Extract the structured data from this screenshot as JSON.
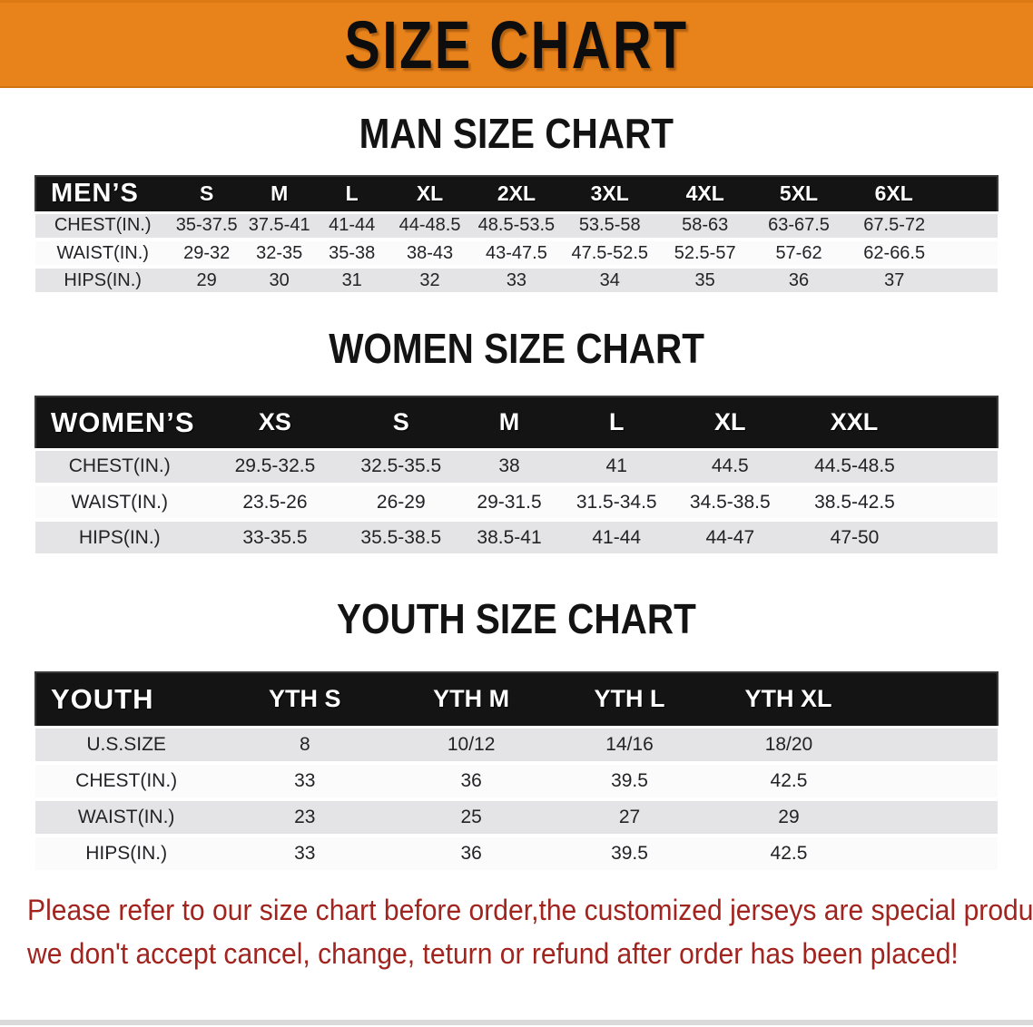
{
  "banner": {
    "title": "SIZE CHART"
  },
  "colors": {
    "banner_bg": "#e8821b",
    "header_bar": "#141414",
    "row_alt_gray": "#e4e4e6",
    "disclaimer_red": "#a1241f"
  },
  "sections": {
    "men": {
      "heading": "MAN SIZE CHART",
      "table": {
        "label": "MEN’S",
        "columns": [
          "S",
          "M",
          "L",
          "XL",
          "2XL",
          "3XL",
          "4XL",
          "5XL",
          "6XL"
        ],
        "rows": [
          {
            "label": "CHEST(IN.)",
            "values": [
              "35-37.5",
              "37.5-41",
              "41-44",
              "44-48.5",
              "48.5-53.5",
              "53.5-58",
              "58-63",
              "63-67.5",
              "67.5-72"
            ]
          },
          {
            "label": "WAIST(IN.)",
            "values": [
              "29-32",
              "32-35",
              "35-38",
              "38-43",
              "43-47.5",
              "47.5-52.5",
              "52.5-57",
              "57-62",
              "62-66.5"
            ]
          },
          {
            "label": "HIPS(IN.)",
            "values": [
              "29",
              "30",
              "31",
              "32",
              "33",
              "34",
              "35",
              "36",
              "37"
            ]
          }
        ]
      }
    },
    "women": {
      "heading": "WOMEN SIZE CHART",
      "table": {
        "label": "WOMEN’S",
        "columns": [
          "XS",
          "S",
          "M",
          "L",
          "XL",
          "XXL"
        ],
        "rows": [
          {
            "label": "CHEST(IN.)",
            "values": [
              "29.5-32.5",
              "32.5-35.5",
              "38",
              "41",
              "44.5",
              "44.5-48.5"
            ]
          },
          {
            "label": "WAIST(IN.)",
            "values": [
              "23.5-26",
              "26-29",
              "29-31.5",
              "31.5-34.5",
              "34.5-38.5",
              "38.5-42.5"
            ]
          },
          {
            "label": "HIPS(IN.)",
            "values": [
              "33-35.5",
              "35.5-38.5",
              "38.5-41",
              "41-44",
              "44-47",
              "47-50"
            ]
          }
        ]
      }
    },
    "youth": {
      "heading": "YOUTH SIZE CHART",
      "table": {
        "label": "YOUTH",
        "columns": [
          "YTH S",
          "YTH M",
          "YTH L",
          "YTH XL"
        ],
        "rows": [
          {
            "label": "U.S.SIZE",
            "values": [
              "8",
              "10/12",
              "14/16",
              "18/20"
            ]
          },
          {
            "label": "CHEST(IN.)",
            "values": [
              "33",
              "36",
              "39.5",
              "42.5"
            ]
          },
          {
            "label": "WAIST(IN.)",
            "values": [
              "23",
              "25",
              "27",
              "29"
            ]
          },
          {
            "label": "HIPS(IN.)",
            "values": [
              "33",
              "36",
              "39.5",
              "42.5"
            ]
          }
        ]
      }
    }
  },
  "disclaimer": {
    "line1": "Please refer to our size chart before order,the customized jerseys are special products,",
    "line2": "we don't accept cancel, change, teturn or refund after order has been placed!"
  }
}
